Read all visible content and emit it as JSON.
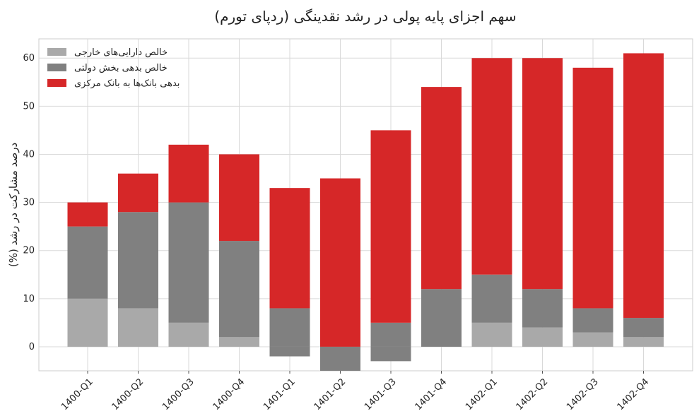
{
  "chart_data": {
    "type": "bar",
    "stacked": true,
    "title": "سهم اجزای پایه پولی در رشد نقدینگی (ردپای تورم)",
    "xlabel": "",
    "ylabel": "درصد مشارکت در رشد (%)",
    "ylim": [
      -5,
      64
    ],
    "yticks": [
      0,
      10,
      20,
      30,
      40,
      50,
      60
    ],
    "grid": true,
    "legend_position": "top-left",
    "categories": [
      "1400-Q1",
      "1400-Q2",
      "1400-Q3",
      "1400-Q4",
      "1401-Q1",
      "1401-Q2",
      "1401-Q3",
      "1401-Q4",
      "1402-Q1",
      "1402-Q2",
      "1402-Q3",
      "1402-Q4"
    ],
    "series": [
      {
        "name": "خالص دارایی‌های خارجی",
        "color": "#a9a9a9",
        "values": [
          10,
          8,
          5,
          2,
          0,
          0,
          0,
          0,
          5,
          4,
          3,
          2
        ]
      },
      {
        "name": "خالص بدهی بخش دولتی",
        "color": "#808080",
        "values": [
          15,
          20,
          25,
          20,
          8,
          0,
          5,
          12,
          10,
          8,
          5,
          4
        ]
      },
      {
        "name": "بدهی بانک‌ها به بانک مرکزی",
        "color": "#d62728",
        "values": [
          5,
          8,
          12,
          18,
          25,
          35,
          40,
          42,
          45,
          48,
          50,
          55
        ]
      }
    ],
    "negative_segments": [
      {
        "category": "1401-Q1",
        "series": "خالص بدهی بخش دولتی",
        "from": -2,
        "to": 0
      },
      {
        "category": "1401-Q2",
        "series": "خالص بدهی بخش دولتی",
        "from": -5,
        "to": 0
      },
      {
        "category": "1401-Q3",
        "series": "خالص بدهی بخش دولتی",
        "from": -3,
        "to": 0
      }
    ]
  }
}
